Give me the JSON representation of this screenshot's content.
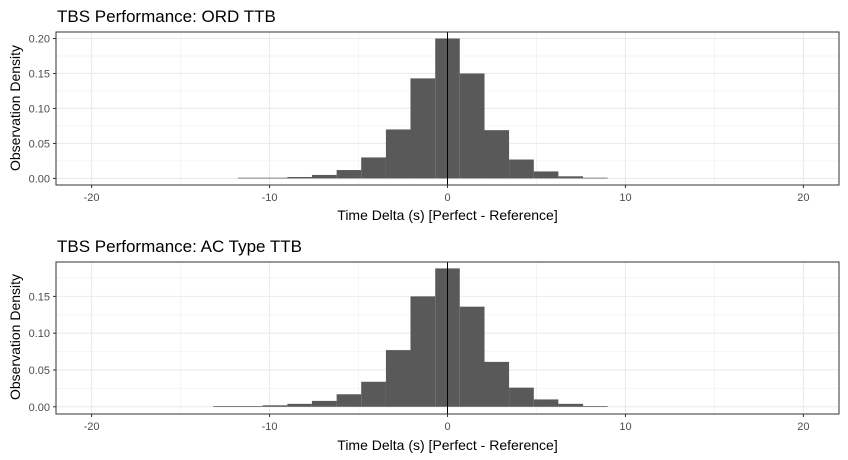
{
  "chart_data": [
    {
      "type": "bar",
      "title": "TBS Performance: ORD TTB",
      "xlabel": "Time Delta (s) [Perfect - Reference]",
      "ylabel": "Observation Density",
      "xlim": [
        -22,
        22
      ],
      "ylim": [
        -0.0094,
        0.2093
      ],
      "xticks": [
        -20,
        -10,
        0,
        10,
        20
      ],
      "xtick_labels": [
        "-20",
        "-10",
        "0",
        "10",
        "20"
      ],
      "yticks": [
        0,
        0.05,
        0.1,
        0.15,
        0.2
      ],
      "ytick_labels": [
        "0.00",
        "0.05",
        "0.10",
        "0.15",
        "0.20"
      ],
      "grid": true,
      "vline": 0,
      "bin_width": 1.385,
      "bins": [
        {
          "x0": -11.77,
          "x1": -10.39,
          "y": 0.001
        },
        {
          "x0": -10.39,
          "x1": -9.0,
          "y": 0.001
        },
        {
          "x0": -9.0,
          "x1": -7.62,
          "y": 0.002
        },
        {
          "x0": -7.62,
          "x1": -6.23,
          "y": 0.005
        },
        {
          "x0": -6.23,
          "x1": -4.85,
          "y": 0.012
        },
        {
          "x0": -4.85,
          "x1": -3.46,
          "y": 0.03
        },
        {
          "x0": -3.46,
          "x1": -2.08,
          "y": 0.07
        },
        {
          "x0": -2.08,
          "x1": -0.69,
          "y": 0.143
        },
        {
          "x0": -0.69,
          "x1": 0.69,
          "y": 0.2
        },
        {
          "x0": 0.69,
          "x1": 2.08,
          "y": 0.15
        },
        {
          "x0": 2.08,
          "x1": 3.46,
          "y": 0.069
        },
        {
          "x0": 3.46,
          "x1": 4.85,
          "y": 0.027
        },
        {
          "x0": 4.85,
          "x1": 6.23,
          "y": 0.01
        },
        {
          "x0": 6.23,
          "x1": 7.62,
          "y": 0.003
        },
        {
          "x0": 7.62,
          "x1": 9.0,
          "y": 0.001
        }
      ]
    },
    {
      "type": "bar",
      "title": "TBS Performance: AC Type TTB",
      "xlabel": "Time Delta (s) [Perfect - Reference]",
      "ylabel": "Observation Density",
      "xlim": [
        -22,
        22
      ],
      "ylim": [
        -0.0098,
        0.1967
      ],
      "xticks": [
        -20,
        -10,
        0,
        10,
        20
      ],
      "xtick_labels": [
        "-20",
        "-10",
        "0",
        "10",
        "20"
      ],
      "yticks": [
        0,
        0.05,
        0.1,
        0.15
      ],
      "ytick_labels": [
        "0.00",
        "0.05",
        "0.10",
        "0.15"
      ],
      "grid": true,
      "vline": 0,
      "bin_width": 1.385,
      "bins": [
        {
          "x0": -13.16,
          "x1": -11.77,
          "y": 0.001
        },
        {
          "x0": -11.77,
          "x1": -10.39,
          "y": 0.001
        },
        {
          "x0": -10.39,
          "x1": -9.0,
          "y": 0.002
        },
        {
          "x0": -9.0,
          "x1": -7.62,
          "y": 0.004
        },
        {
          "x0": -7.62,
          "x1": -6.23,
          "y": 0.008
        },
        {
          "x0": -6.23,
          "x1": -4.85,
          "y": 0.017
        },
        {
          "x0": -4.85,
          "x1": -3.46,
          "y": 0.034
        },
        {
          "x0": -3.46,
          "x1": -2.08,
          "y": 0.077
        },
        {
          "x0": -2.08,
          "x1": -0.69,
          "y": 0.15
        },
        {
          "x0": -0.69,
          "x1": 0.69,
          "y": 0.188
        },
        {
          "x0": 0.69,
          "x1": 2.08,
          "y": 0.136
        },
        {
          "x0": 2.08,
          "x1": 3.46,
          "y": 0.061
        },
        {
          "x0": 3.46,
          "x1": 4.85,
          "y": 0.026
        },
        {
          "x0": 4.85,
          "x1": 6.23,
          "y": 0.01
        },
        {
          "x0": 6.23,
          "x1": 7.62,
          "y": 0.004
        },
        {
          "x0": 7.62,
          "x1": 9.0,
          "y": 0.001
        }
      ]
    }
  ],
  "colors": {
    "bar_fill": "#595959",
    "panel_border": "#333333",
    "grid_major": "#ebebeb",
    "grid_minor": "#f5f5f5",
    "tick_text": "#4d4d4d",
    "reference_line": "#000000"
  }
}
